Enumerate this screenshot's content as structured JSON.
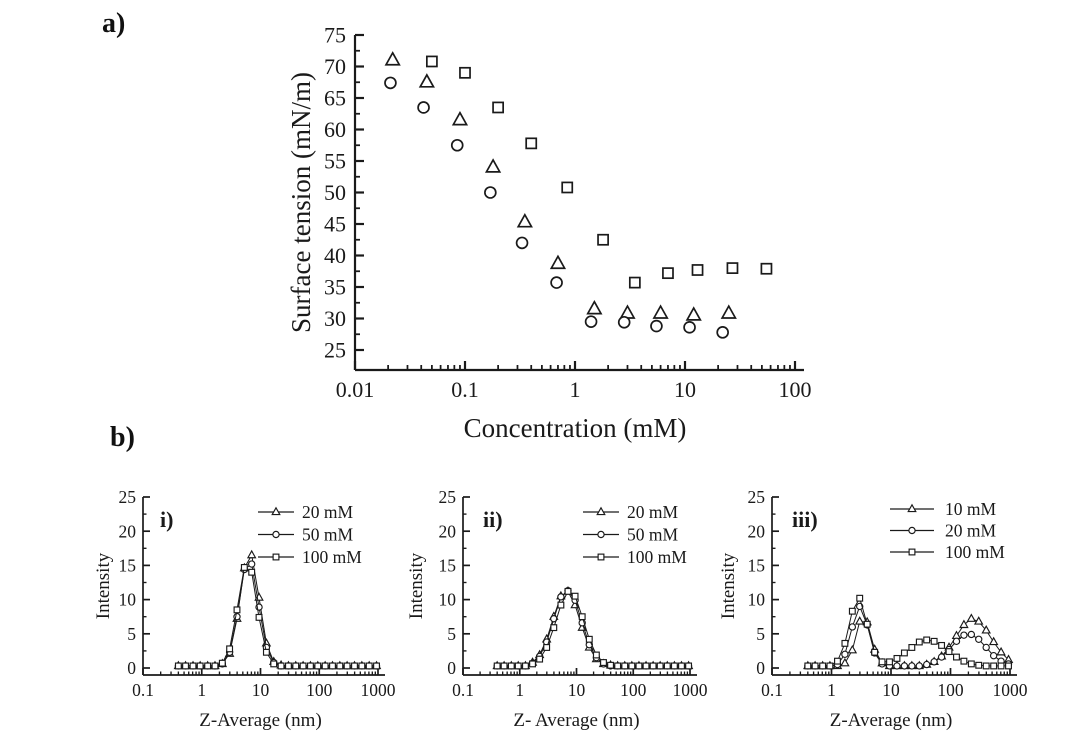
{
  "page": {
    "background": "#ffffff",
    "ink_color": "#1a1a1a"
  },
  "panels": {
    "a": {
      "label": "a)"
    },
    "b": {
      "label": "b)"
    }
  },
  "chart_data": [
    {
      "id": "surface-tension-plot",
      "panel": "a",
      "type": "scatter",
      "xscale": "log",
      "xlabel": "Concentration (mM)",
      "ylabel": "Surface tension (mN/m)",
      "xlim": [
        0.01,
        100
      ],
      "ylim": [
        25,
        75
      ],
      "xticks": [
        0.01,
        0.1,
        1,
        10,
        100
      ],
      "xtick_labels": [
        "0.01",
        "0.1",
        "1",
        "10",
        "100"
      ],
      "yticks": [
        25,
        30,
        35,
        40,
        45,
        50,
        55,
        60,
        65,
        70,
        75
      ],
      "grid": false,
      "legend": false,
      "connect": false,
      "series": [
        {
          "name": "triangle-series",
          "marker": "triangle",
          "points": [
            [
              0.022,
              71
            ],
            [
              0.045,
              67.5
            ],
            [
              0.09,
              61.5
            ],
            [
              0.18,
              54
            ],
            [
              0.35,
              45.3
            ],
            [
              0.7,
              38.7
            ],
            [
              1.5,
              31.5
            ],
            [
              3,
              30.8
            ],
            [
              6,
              30.8
            ],
            [
              12,
              30.5
            ],
            [
              25,
              30.8
            ]
          ]
        },
        {
          "name": "circle-series",
          "marker": "circle",
          "points": [
            [
              0.021,
              67.4
            ],
            [
              0.042,
              63.5
            ],
            [
              0.085,
              57.5
            ],
            [
              0.17,
              50
            ],
            [
              0.33,
              42
            ],
            [
              0.68,
              35.7
            ],
            [
              1.4,
              29.5
            ],
            [
              2.8,
              29.4
            ],
            [
              5.5,
              28.8
            ],
            [
              11,
              28.6
            ],
            [
              22,
              27.8
            ]
          ]
        },
        {
          "name": "square-series",
          "marker": "square",
          "points": [
            [
              0.05,
              70.8
            ],
            [
              0.1,
              69
            ],
            [
              0.2,
              63.5
            ],
            [
              0.4,
              57.8
            ],
            [
              0.85,
              50.8
            ],
            [
              1.8,
              42.5
            ],
            [
              3.5,
              35.7
            ],
            [
              7,
              37.2
            ],
            [
              13,
              37.7
            ],
            [
              27,
              38
            ],
            [
              55,
              37.9
            ]
          ]
        }
      ]
    },
    {
      "id": "dls-plot-i",
      "panel": "b",
      "panel_label": "i)",
      "type": "line",
      "xscale": "log",
      "xlabel": "Z-Average (nm)",
      "ylabel": "Intensity",
      "xlim": [
        0.1,
        1000
      ],
      "ylim": [
        0,
        25
      ],
      "xticks": [
        0.1,
        1,
        10,
        100,
        1000
      ],
      "xtick_labels": [
        "0.1",
        "1",
        "10",
        "100",
        "1000"
      ],
      "yticks": [
        0,
        5,
        10,
        15,
        20,
        25
      ],
      "grid": false,
      "legend": true,
      "connect": true,
      "x": [
        0.4,
        0.53,
        0.71,
        0.94,
        1.26,
        1.68,
        2.24,
        2.98,
        3.98,
        5.31,
        7.08,
        9.44,
        12.6,
        16.8,
        22.4,
        29.9,
        39.8,
        53.1,
        70.8,
        94.4,
        126,
        168,
        224,
        298,
        398,
        531,
        708,
        944
      ],
      "series": [
        {
          "name": "20 mM",
          "marker": "triangle",
          "values": [
            0.3,
            0.3,
            0.3,
            0.3,
            0.3,
            0.3,
            0.6,
            2.1,
            7.2,
            14.6,
            16.5,
            10.3,
            3.6,
            0.9,
            0.4,
            0.3,
            0.3,
            0.3,
            0.3,
            0.3,
            0.3,
            0.3,
            0.3,
            0.3,
            0.3,
            0.3,
            0.3,
            0.3
          ]
        },
        {
          "name": "50 mM",
          "marker": "circle",
          "values": [
            0.3,
            0.3,
            0.3,
            0.3,
            0.3,
            0.3,
            0.6,
            2.3,
            7.5,
            14.4,
            15.2,
            8.9,
            3.0,
            0.8,
            0.3,
            0.3,
            0.3,
            0.3,
            0.3,
            0.3,
            0.3,
            0.3,
            0.3,
            0.3,
            0.3,
            0.3,
            0.3,
            0.3
          ]
        },
        {
          "name": "100 mM",
          "marker": "square",
          "values": [
            0.3,
            0.3,
            0.3,
            0.3,
            0.3,
            0.3,
            0.7,
            2.8,
            8.5,
            14.7,
            14.0,
            7.4,
            2.3,
            0.6,
            0.3,
            0.3,
            0.3,
            0.3,
            0.3,
            0.3,
            0.3,
            0.3,
            0.3,
            0.3,
            0.3,
            0.3,
            0.3,
            0.3
          ]
        }
      ]
    },
    {
      "id": "dls-plot-ii",
      "panel": "b",
      "panel_label": "ii)",
      "type": "line",
      "xscale": "log",
      "xlabel": "Z- Average (nm)",
      "ylabel": "Intensity",
      "xlim": [
        0.1,
        1000
      ],
      "ylim": [
        0,
        25
      ],
      "xticks": [
        0.1,
        1,
        10,
        100,
        1000
      ],
      "xtick_labels": [
        "0.1",
        "1",
        "10",
        "100",
        "1000"
      ],
      "yticks": [
        0,
        5,
        10,
        15,
        20,
        25
      ],
      "grid": false,
      "legend": true,
      "connect": true,
      "x": [
        0.4,
        0.53,
        0.71,
        0.94,
        1.26,
        1.68,
        2.24,
        2.98,
        3.98,
        5.31,
        7.08,
        9.44,
        12.6,
        16.8,
        22.4,
        29.9,
        39.8,
        53.1,
        70.8,
        94.4,
        126,
        168,
        224,
        298,
        398,
        531,
        708,
        944
      ],
      "series": [
        {
          "name": "20 mM",
          "marker": "triangle",
          "values": [
            0.3,
            0.3,
            0.3,
            0.3,
            0.3,
            0.8,
            1.9,
            4.2,
            7.5,
            10.5,
            11.2,
            9.2,
            5.9,
            3.0,
            1.3,
            0.6,
            0.4,
            0.3,
            0.3,
            0.3,
            0.3,
            0.3,
            0.3,
            0.3,
            0.3,
            0.3,
            0.3,
            0.3
          ]
        },
        {
          "name": "50 mM",
          "marker": "circle",
          "values": [
            0.3,
            0.3,
            0.3,
            0.3,
            0.3,
            0.7,
            1.7,
            3.8,
            7.2,
            10.4,
            11.3,
            9.9,
            6.6,
            3.4,
            1.5,
            0.6,
            0.3,
            0.3,
            0.3,
            0.3,
            0.3,
            0.3,
            0.3,
            0.3,
            0.3,
            0.3,
            0.3,
            0.3
          ]
        },
        {
          "name": "100 mM",
          "marker": "square",
          "values": [
            0.3,
            0.3,
            0.3,
            0.3,
            0.3,
            0.6,
            1.3,
            3.0,
            5.9,
            9.2,
            11.2,
            10.5,
            7.5,
            4.2,
            1.9,
            0.8,
            0.4,
            0.3,
            0.3,
            0.3,
            0.3,
            0.3,
            0.3,
            0.3,
            0.3,
            0.3,
            0.3,
            0.3
          ]
        }
      ]
    },
    {
      "id": "dls-plot-iii",
      "panel": "b",
      "panel_label": "iii)",
      "type": "line",
      "xscale": "log",
      "xlabel": "Z-Average (nm)",
      "ylabel": "Intensity",
      "xlim": [
        0.1,
        1000
      ],
      "ylim": [
        0,
        25
      ],
      "xticks": [
        0.1,
        1,
        10,
        100,
        1000
      ],
      "xtick_labels": [
        "0.1",
        "1",
        "10",
        "100",
        "1000"
      ],
      "yticks": [
        0,
        5,
        10,
        15,
        20,
        25
      ],
      "grid": false,
      "legend": true,
      "connect": true,
      "x": [
        0.4,
        0.53,
        0.71,
        0.94,
        1.26,
        1.68,
        2.24,
        2.98,
        3.98,
        5.31,
        7.08,
        9.44,
        12.6,
        16.8,
        22.4,
        29.9,
        39.8,
        53.1,
        70.8,
        94.4,
        126,
        168,
        224,
        298,
        398,
        531,
        708,
        944
      ],
      "series": [
        {
          "name": "10 mM",
          "marker": "triangle",
          "values": [
            0.3,
            0.3,
            0.3,
            0.3,
            0.3,
            0.7,
            2.6,
            6.8,
            6.7,
            2.7,
            0.7,
            0.3,
            0.3,
            0.3,
            0.3,
            0.3,
            0.5,
            0.9,
            1.7,
            3.0,
            4.7,
            6.3,
            7.2,
            6.8,
            5.5,
            3.8,
            2.3,
            1.2
          ]
        },
        {
          "name": "20 mM",
          "marker": "circle",
          "values": [
            0.3,
            0.3,
            0.3,
            0.3,
            0.5,
            2.0,
            6.0,
            9.0,
            6.3,
            2.2,
            0.6,
            0.3,
            0.3,
            0.3,
            0.3,
            0.3,
            0.5,
            0.9,
            1.6,
            2.7,
            3.9,
            4.8,
            4.9,
            4.2,
            3.0,
            1.8,
            1.0,
            0.6
          ]
        },
        {
          "name": "100 mM",
          "marker": "square",
          "values": [
            0.3,
            0.3,
            0.3,
            0.3,
            1.0,
            3.6,
            8.3,
            10.2,
            6.4,
            2.3,
            0.9,
            0.9,
            1.4,
            2.2,
            3.0,
            3.8,
            4.1,
            3.9,
            3.3,
            2.4,
            1.6,
            1.0,
            0.6,
            0.4,
            0.3,
            0.3,
            0.3,
            0.3
          ]
        }
      ]
    }
  ]
}
